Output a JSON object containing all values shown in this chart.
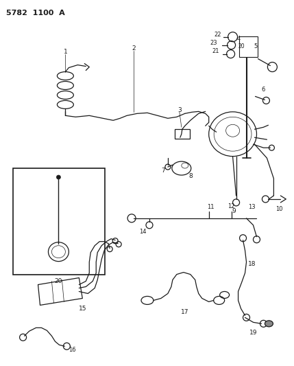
{
  "title": "5782  1100  A",
  "bg_color": "#ffffff",
  "line_color": "#1a1a1a",
  "figsize": [
    4.29,
    5.33
  ],
  "dpi": 100
}
